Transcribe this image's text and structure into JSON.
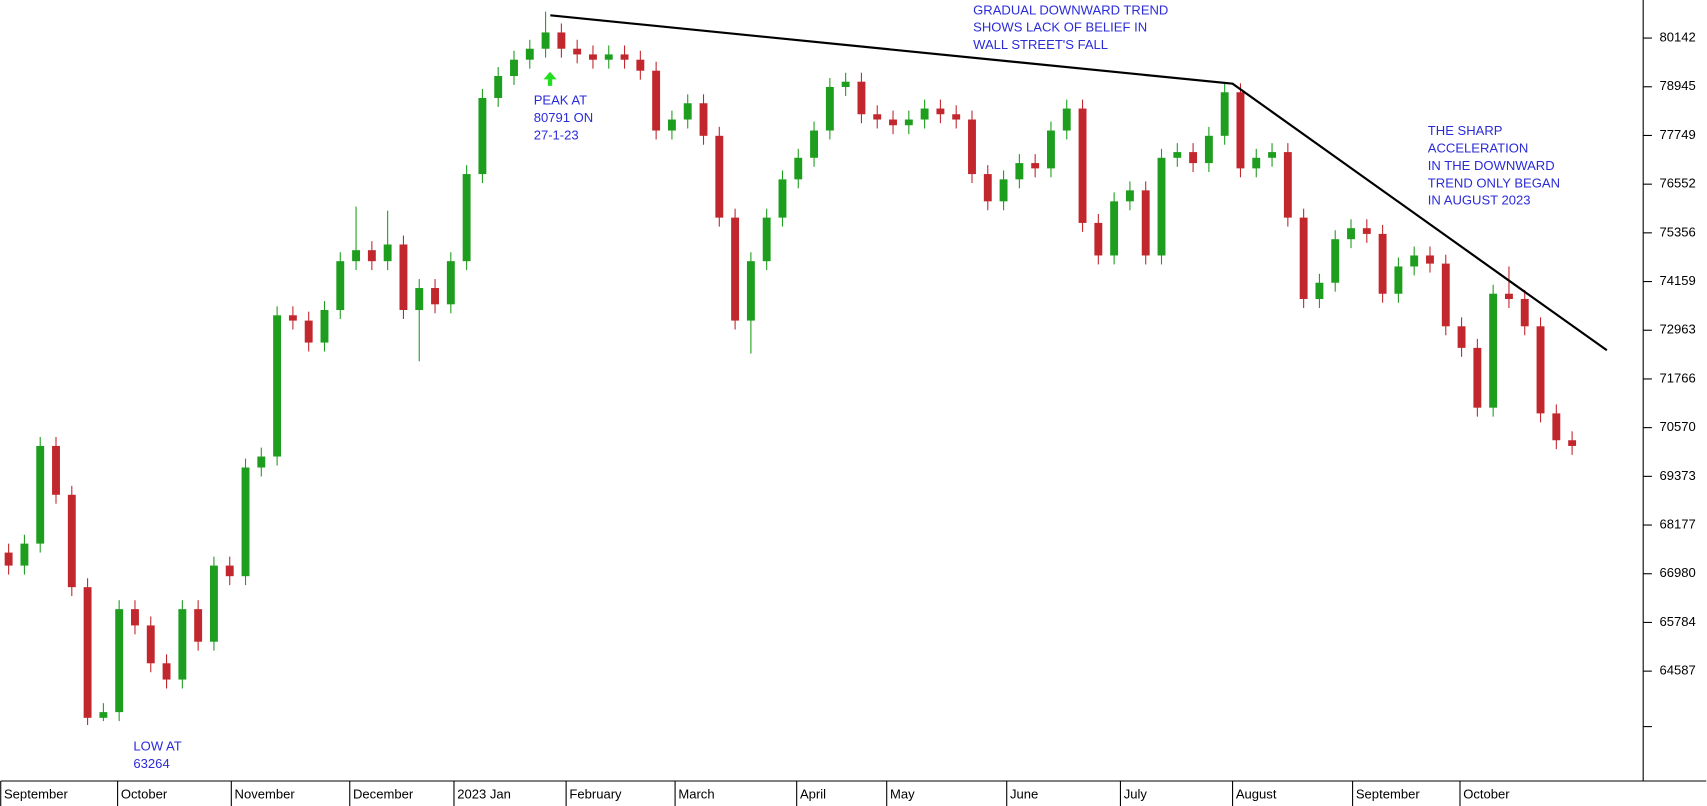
{
  "chart_data": {
    "type": "candlestick",
    "up_color": "#1e9e1e",
    "down_color": "#c1272d",
    "ylim": [
      61888,
      81077
    ],
    "yticks": [
      64587,
      65784,
      66980,
      68177,
      69373,
      70570,
      71766,
      72963,
      74159,
      75356,
      76552,
      77749,
      78945,
      80142
    ],
    "xlim": [
      0,
      104
    ],
    "xticks": [
      {
        "value": 0,
        "label": "September"
      },
      {
        "value": 7.4,
        "label": "October"
      },
      {
        "value": 14.6,
        "label": "November"
      },
      {
        "value": 22.1,
        "label": "December"
      },
      {
        "value": 28.7,
        "label": "2023 Jan"
      },
      {
        "value": 35.8,
        "label": "February"
      },
      {
        "value": 42.7,
        "label": "March"
      },
      {
        "value": 50.4,
        "label": "April"
      },
      {
        "value": 56.1,
        "label": "May"
      },
      {
        "value": 63.7,
        "label": "June"
      },
      {
        "value": 70.9,
        "label": "July"
      },
      {
        "value": 78,
        "label": "August"
      },
      {
        "value": 85.6,
        "label": "September"
      },
      {
        "value": 92.4,
        "label": "October"
      }
    ],
    "open": [
      67500,
      67180,
      67720,
      70120,
      68920,
      66650,
      63440,
      63580,
      66110,
      65710,
      64780,
      64380,
      66110,
      65310,
      67180,
      66920,
      69590,
      69860,
      73330,
      73200,
      72660,
      73460,
      74660,
      74930,
      74660,
      75070,
      73460,
      74000,
      73600,
      74660,
      76800,
      78670,
      79210,
      79610,
      79880,
      80280,
      79880,
      79740,
      79610,
      79740,
      79610,
      79340,
      77870,
      78140,
      78540,
      77740,
      75730,
      73200,
      74660,
      75730,
      76670,
      77200,
      77870,
      78940,
      79070,
      78270,
      78140,
      78000,
      78140,
      78410,
      78270,
      78140,
      76800,
      76130,
      76670,
      77070,
      76940,
      77870,
      78410,
      75600,
      74800,
      76130,
      76400,
      74800,
      77200,
      77340,
      77070,
      77740,
      78810,
      76940,
      77200,
      77340,
      75730,
      73730,
      74130,
      75200,
      75470,
      75330,
      73860,
      74530,
      74800,
      74600,
      73060,
      72530,
      71060,
      73860,
      73730,
      73060,
      70920,
      70260
    ],
    "high": [
      67720,
      67940,
      70340,
      70340,
      69140,
      66870,
      63800,
      66330,
      66330,
      65930,
      65000,
      66330,
      66330,
      67400,
      67400,
      69810,
      70080,
      73550,
      73550,
      73420,
      73680,
      74880,
      76000,
      75150,
      75900,
      75290,
      74220,
      74220,
      74880,
      77020,
      78890,
      79430,
      79830,
      80100,
      80791,
      80500,
      80100,
      79960,
      79960,
      79960,
      79830,
      79560,
      78360,
      78760,
      78760,
      77960,
      75950,
      74880,
      75950,
      76890,
      77420,
      78090,
      79160,
      79290,
      79290,
      78490,
      78360,
      78360,
      78630,
      78630,
      78490,
      78360,
      77020,
      76890,
      77290,
      77290,
      78090,
      78630,
      78630,
      75820,
      76350,
      76620,
      76620,
      77420,
      77560,
      77560,
      77960,
      79030,
      79030,
      77420,
      77560,
      77560,
      75950,
      74350,
      75420,
      75690,
      75690,
      75550,
      74750,
      75020,
      75020,
      74820,
      73280,
      72750,
      74080,
      74530,
      73950,
      73280,
      71140,
      70480
    ],
    "low": [
      66960,
      66960,
      67500,
      68700,
      66430,
      63264,
      63360,
      63360,
      65490,
      64560,
      64160,
      64160,
      65090,
      65090,
      66700,
      66700,
      69370,
      69640,
      72980,
      72440,
      72440,
      73240,
      74440,
      74440,
      74440,
      73240,
      72200,
      73380,
      73380,
      74440,
      76580,
      78450,
      78990,
      79390,
      79660,
      79660,
      79520,
      79390,
      79390,
      79390,
      79120,
      77650,
      77650,
      77920,
      77520,
      75510,
      72980,
      72390,
      74440,
      75510,
      76450,
      76980,
      77650,
      78720,
      78050,
      77920,
      77780,
      77780,
      77920,
      78050,
      77920,
      76580,
      75910,
      75910,
      76450,
      76720,
      76720,
      77650,
      75380,
      74580,
      74580,
      75910,
      74580,
      74580,
      76980,
      76850,
      76850,
      77520,
      76720,
      76720,
      76980,
      75510,
      73510,
      73510,
      73910,
      74980,
      75110,
      73640,
      73640,
      74310,
      74380,
      72840,
      72310,
      70840,
      70840,
      73510,
      72840,
      70700,
      70040,
      69900
    ],
    "close": [
      67180,
      67720,
      70120,
      68920,
      66650,
      63440,
      63580,
      66110,
      65710,
      64780,
      64380,
      66110,
      65310,
      67180,
      66920,
      69590,
      69860,
      73330,
      73200,
      72660,
      73460,
      74660,
      74930,
      74660,
      75070,
      73460,
      74000,
      73600,
      74660,
      76800,
      78670,
      79210,
      79610,
      79880,
      80280,
      79880,
      79740,
      79610,
      79740,
      79610,
      79340,
      77870,
      78140,
      78540,
      77740,
      75730,
      73200,
      74660,
      75730,
      76670,
      77200,
      77870,
      78940,
      79070,
      78270,
      78140,
      78000,
      78140,
      78410,
      78270,
      78140,
      76800,
      76130,
      76670,
      77070,
      76940,
      77870,
      78410,
      75600,
      74800,
      76130,
      76400,
      74800,
      77200,
      77340,
      77070,
      77740,
      78810,
      76940,
      77200,
      77340,
      75730,
      73730,
      74130,
      75200,
      75470,
      75330,
      73860,
      74530,
      74800,
      74600,
      73060,
      72530,
      71060,
      73860,
      73730,
      73060,
      70920,
      70260,
      70120
    ],
    "trendline": {
      "color": "#000000",
      "x": [
        34.8,
        78,
        101.7
      ],
      "y": [
        80700,
        79020,
        72470
      ]
    },
    "annotations": [
      {
        "lines": [
          "GRADUAL DOWNWARD TREND",
          "SHOWS LACK OF BELIEF IN",
          "WALL STREET'S FALL"
        ]
      },
      {
        "lines": [
          "PEAK AT",
          "80791 ON",
          "27-1-23"
        ]
      },
      {
        "lines": [
          "THE SHARP",
          "ACCELERATION",
          "IN THE DOWNWARD",
          "TREND ONLY BEGAN",
          "IN AUGUST 2023"
        ]
      },
      {
        "lines": [
          "LOW AT",
          "63264"
        ]
      }
    ]
  }
}
